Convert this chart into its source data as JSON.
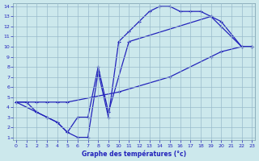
{
  "xlabel": "Graphe des températures (°c)",
  "background_color": "#cce8ec",
  "line_color": "#2222bb",
  "grid_color": "#99bbcc",
  "xlim": [
    0,
    23
  ],
  "ylim": [
    1,
    14
  ],
  "xticks": [
    0,
    1,
    2,
    3,
    4,
    5,
    6,
    7,
    8,
    9,
    10,
    11,
    12,
    13,
    14,
    15,
    16,
    17,
    18,
    19,
    20,
    21,
    22,
    23
  ],
  "yticks": [
    1,
    2,
    3,
    4,
    5,
    6,
    7,
    8,
    9,
    10,
    11,
    12,
    13,
    14
  ],
  "line_top": {
    "x": [
      0,
      1,
      2,
      3,
      4,
      5,
      6,
      7,
      8,
      9,
      10,
      11,
      12,
      13,
      14,
      15,
      16,
      17,
      18,
      19,
      20,
      21,
      22,
      23
    ],
    "y": [
      4.5,
      4.5,
      3.5,
      3.0,
      2.5,
      1.5,
      1.0,
      1.0,
      7.5,
      3.0,
      10.5,
      11.5,
      12.5,
      13.5,
      14.0,
      14.0,
      13.5,
      13.5,
      13.5,
      13.0,
      12.0,
      11.0,
      10.0,
      10.0
    ]
  },
  "line_mid": {
    "x": [
      0,
      2,
      3,
      4,
      5,
      6,
      7,
      8,
      9,
      11,
      19,
      20,
      22,
      23
    ],
    "y": [
      4.5,
      3.5,
      3.0,
      2.5,
      1.5,
      3.0,
      3.0,
      8.0,
      3.5,
      10.5,
      13.0,
      12.5,
      10.0,
      10.0
    ]
  },
  "line_diag": {
    "x": [
      0,
      1,
      2,
      3,
      4,
      5,
      10,
      15,
      19,
      20,
      22,
      23
    ],
    "y": [
      4.5,
      4.5,
      4.5,
      4.5,
      4.5,
      4.5,
      5.5,
      7.0,
      9.0,
      9.5,
      10.0,
      10.0
    ]
  }
}
